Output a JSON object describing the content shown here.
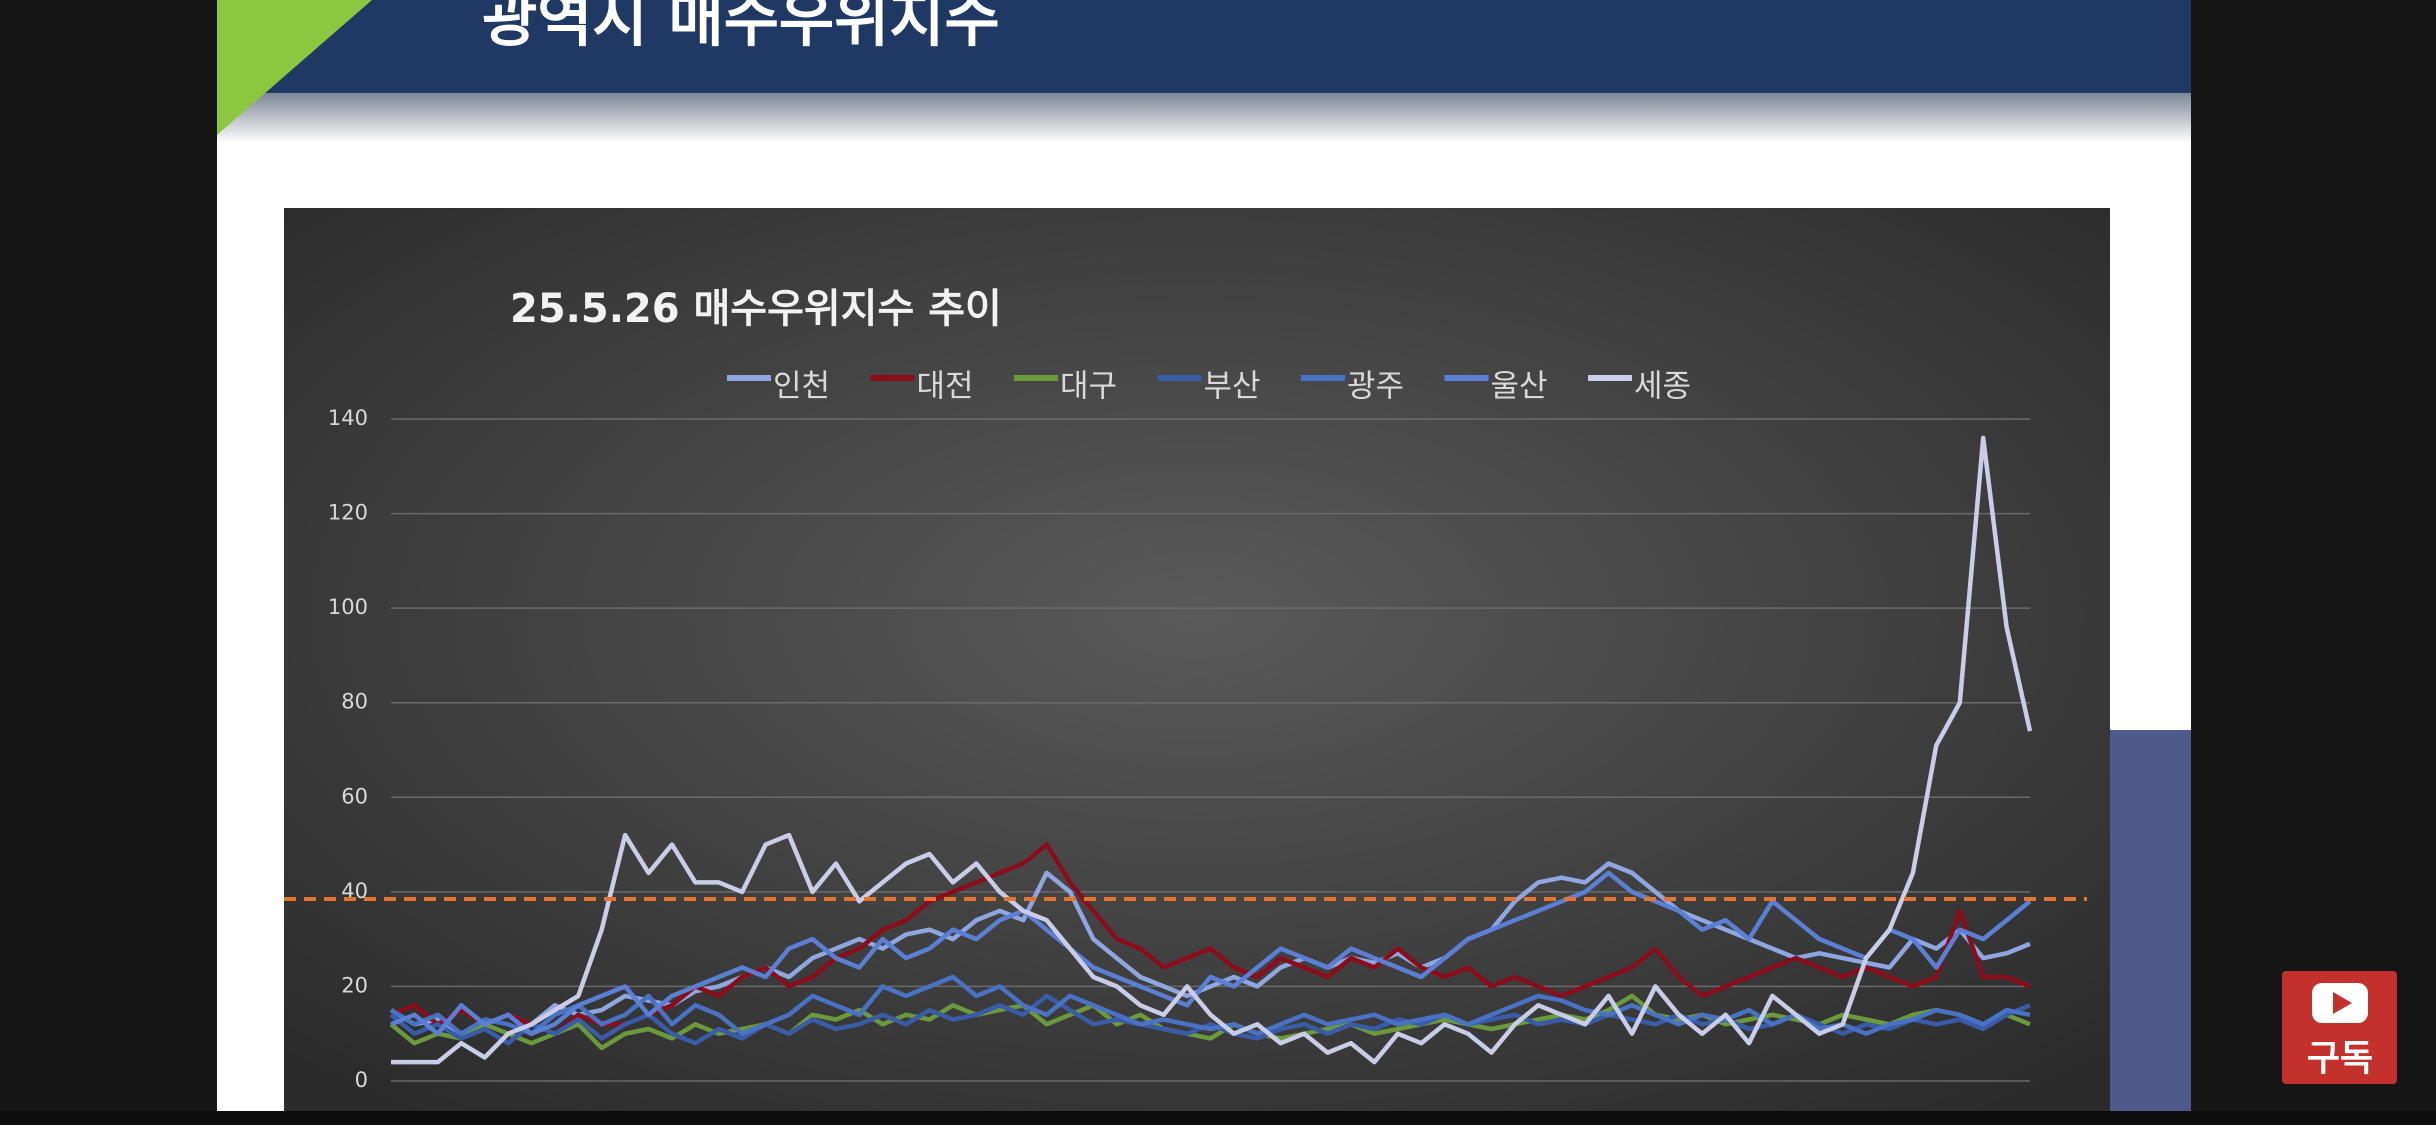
{
  "slide_title": "광역시 매수우위지수",
  "subscribe_label": "구독",
  "chart_data": {
    "type": "line",
    "title": "25.5.26 매수우위지수 추이",
    "ylim": [
      0,
      140
    ],
    "yticks": [
      0,
      20,
      40,
      60,
      80,
      100,
      120,
      140
    ],
    "grid": true,
    "legend": "top",
    "reference_line": {
      "value": 38.5,
      "color": "#e8742c"
    },
    "series": [
      {
        "name": "인천",
        "color": "#8fa6e0",
        "values": [
          15,
          12,
          13,
          10,
          12,
          14,
          12,
          16,
          14,
          15,
          18,
          17,
          16,
          19,
          20,
          22,
          24,
          22,
          26,
          28,
          30,
          28,
          31,
          32,
          30,
          34,
          36,
          34,
          44,
          40,
          30,
          26,
          22,
          20,
          18,
          20,
          22,
          20,
          24,
          26,
          24,
          26,
          25,
          27,
          24,
          26,
          30,
          32,
          38,
          42,
          43,
          42,
          46,
          44,
          40,
          36,
          34,
          32,
          30,
          28,
          26,
          27,
          26,
          25,
          24,
          30,
          28,
          32,
          26,
          27,
          29
        ]
      },
      {
        "name": "대전",
        "color": "#8b0d1c",
        "values": [
          14,
          16,
          12,
          15,
          12,
          14,
          12,
          10,
          14,
          12,
          12,
          14,
          16,
          20,
          18,
          22,
          24,
          20,
          22,
          26,
          28,
          32,
          34,
          38,
          40,
          42,
          44,
          46,
          50,
          42,
          36,
          30,
          28,
          24,
          26,
          28,
          24,
          22,
          26,
          24,
          22,
          26,
          24,
          28,
          24,
          22,
          24,
          20,
          22,
          20,
          18,
          20,
          22,
          24,
          28,
          22,
          18,
          20,
          22,
          24,
          26,
          24,
          22,
          24,
          22,
          20,
          22,
          36,
          22,
          22,
          20
        ]
      },
      {
        "name": "대구",
        "color": "#6a9a3b",
        "values": [
          12,
          8,
          10,
          9,
          12,
          10,
          8,
          10,
          12,
          7,
          10,
          11,
          9,
          12,
          10,
          11,
          12,
          10,
          14,
          13,
          15,
          12,
          14,
          13,
          16,
          14,
          15,
          16,
          12,
          14,
          16,
          12,
          14,
          11,
          10,
          9,
          12,
          10,
          9,
          10,
          11,
          12,
          10,
          11,
          12,
          13,
          12,
          11,
          12,
          13,
          14,
          13,
          15,
          18,
          14,
          13,
          14,
          12,
          13,
          14,
          13,
          12,
          14,
          13,
          12,
          14,
          15,
          14,
          12,
          14,
          12
        ]
      },
      {
        "name": "부산",
        "color": "#3a5ba8",
        "values": [
          14,
          10,
          12,
          9,
          11,
          8,
          12,
          10,
          13,
          9,
          12,
          14,
          10,
          8,
          11,
          9,
          12,
          10,
          13,
          11,
          12,
          14,
          12,
          15,
          13,
          14,
          16,
          14,
          18,
          15,
          12,
          13,
          12,
          11,
          10,
          12,
          10,
          9,
          11,
          12,
          10,
          12,
          11,
          13,
          12,
          14,
          12,
          13,
          14,
          12,
          13,
          12,
          14,
          13,
          12,
          14,
          12,
          13,
          11,
          12,
          14,
          12,
          10,
          12,
          11,
          13,
          12,
          13,
          11,
          14,
          16
        ]
      },
      {
        "name": "광주",
        "color": "#4a72c4",
        "values": [
          15,
          12,
          14,
          10,
          13,
          12,
          10,
          14,
          16,
          12,
          14,
          18,
          12,
          16,
          14,
          10,
          12,
          14,
          18,
          16,
          14,
          20,
          18,
          20,
          22,
          18,
          20,
          16,
          14,
          18,
          16,
          14,
          12,
          13,
          12,
          11,
          12,
          10,
          12,
          14,
          12,
          13,
          14,
          12,
          13,
          14,
          12,
          14,
          16,
          18,
          17,
          15,
          14,
          16,
          14,
          12,
          14,
          13,
          15,
          12,
          14,
          11,
          12,
          10,
          12,
          13,
          15,
          14,
          12,
          15,
          14
        ]
      },
      {
        "name": "울산",
        "color": "#5b7fd4",
        "values": [
          12,
          14,
          10,
          16,
          12,
          14,
          10,
          12,
          16,
          18,
          20,
          14,
          18,
          20,
          22,
          24,
          22,
          28,
          30,
          26,
          24,
          30,
          26,
          28,
          32,
          30,
          34,
          36,
          32,
          28,
          24,
          22,
          20,
          18,
          16,
          22,
          20,
          24,
          28,
          26,
          24,
          28,
          26,
          24,
          22,
          26,
          30,
          32,
          34,
          36,
          38,
          40,
          44,
          40,
          38,
          36,
          32,
          34,
          30,
          38,
          34,
          30,
          28,
          26,
          32,
          30,
          24,
          32,
          30,
          34,
          38
        ]
      },
      {
        "name": "세종",
        "color": "#c9cde8",
        "values": [
          4,
          4,
          4,
          8,
          5,
          10,
          12,
          15,
          18,
          32,
          52,
          44,
          50,
          42,
          42,
          40,
          50,
          52,
          40,
          46,
          38,
          42,
          46,
          48,
          42,
          46,
          40,
          36,
          34,
          28,
          22,
          20,
          16,
          14,
          20,
          14,
          10,
          12,
          8,
          10,
          6,
          8,
          4,
          10,
          8,
          12,
          10,
          6,
          12,
          16,
          14,
          12,
          18,
          10,
          20,
          14,
          10,
          14,
          8,
          18,
          14,
          10,
          12,
          26,
          32,
          44,
          71,
          80,
          136,
          96,
          74
        ]
      }
    ]
  }
}
